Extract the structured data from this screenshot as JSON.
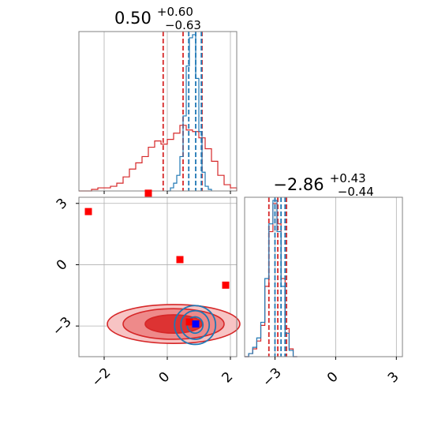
{
  "chart_data": [
    {
      "type": "histogram",
      "panel": "marginal-x",
      "title": {
        "median": "0.50",
        "plus": "+0.60",
        "minus": "−0.63"
      },
      "xlim": [
        -2.8,
        2.2
      ],
      "x_ticks": [
        -2,
        0,
        2
      ],
      "series": [
        {
          "color": "#d62728",
          "bin_edges": [
            -2.8,
            -2.6,
            -2.4,
            -2.2,
            -2.0,
            -1.8,
            -1.6,
            -1.4,
            -1.2,
            -1.0,
            -0.8,
            -0.6,
            -0.4,
            -0.2,
            0.0,
            0.2,
            0.4,
            0.6,
            0.8,
            1.0,
            1.2,
            1.4,
            1.6,
            1.8,
            2.0,
            2.2
          ],
          "counts": [
            0.0,
            0.0,
            0.01,
            0.02,
            0.02,
            0.03,
            0.05,
            0.09,
            0.14,
            0.18,
            0.22,
            0.28,
            0.32,
            0.3,
            0.33,
            0.37,
            0.42,
            0.39,
            0.38,
            0.34,
            0.27,
            0.19,
            0.1,
            0.04,
            0.02
          ],
          "quantile_lines": [
            -0.13,
            0.5,
            1.1
          ]
        },
        {
          "color": "#1f77b4",
          "bin_edges": [
            0.0,
            0.1,
            0.2,
            0.3,
            0.4,
            0.5,
            0.6,
            0.7,
            0.8,
            0.9,
            1.0,
            1.1,
            1.2,
            1.3,
            1.4
          ],
          "counts": [
            0.0,
            0.02,
            0.05,
            0.1,
            0.22,
            0.48,
            0.8,
            0.98,
            1.0,
            0.72,
            0.38,
            0.12,
            0.03,
            0.01
          ],
          "quantile_lines": [
            0.68,
            0.9,
            1.08
          ]
        }
      ]
    },
    {
      "type": "histogram",
      "panel": "marginal-y",
      "title": {
        "median": "−2.86",
        "plus": "+0.43",
        "minus": "−0.44"
      },
      "xlim": [
        -4.5,
        3.3
      ],
      "x_ticks": [
        -3,
        0,
        3
      ],
      "series": [
        {
          "color": "#d62728",
          "bin_edges": [
            -4.5,
            -4.3,
            -4.1,
            -3.9,
            -3.7,
            -3.5,
            -3.3,
            -3.1,
            -2.9,
            -2.7,
            -2.5,
            -2.3,
            -2.1,
            -1.9
          ],
          "counts": [
            0.0,
            0.02,
            0.05,
            0.1,
            0.2,
            0.45,
            0.8,
            0.98,
            0.85,
            0.5,
            0.18,
            0.05,
            0.0
          ],
          "quantile_lines": [
            -3.3,
            -2.86,
            -2.43
          ]
        },
        {
          "color": "#1f77b4",
          "bin_edges": [
            -4.5,
            -4.3,
            -4.1,
            -3.9,
            -3.7,
            -3.5,
            -3.3,
            -3.1,
            -2.9,
            -2.7,
            -2.5,
            -2.3,
            -2.1,
            -1.9
          ],
          "counts": [
            0.0,
            0.02,
            0.06,
            0.12,
            0.22,
            0.5,
            0.85,
            1.0,
            0.8,
            0.45,
            0.15,
            0.04,
            0.0
          ],
          "quantile_lines": [
            -3.0,
            -2.7,
            -2.5
          ]
        }
      ]
    },
    {
      "type": "scatter",
      "panel": "joint",
      "xlim": [
        -2.8,
        2.2
      ],
      "ylim": [
        -4.5,
        3.3
      ],
      "x_ticks": [
        -2,
        0,
        2
      ],
      "y_ticks": [
        -3,
        0,
        3
      ],
      "markers": [
        {
          "x": -2.5,
          "y": 2.6,
          "color": "#ff0000"
        },
        {
          "x": -0.6,
          "y": 3.5,
          "color": "#ff0000"
        },
        {
          "x": 0.4,
          "y": 0.25,
          "color": "#ff0000"
        },
        {
          "x": 1.85,
          "y": -1.0,
          "color": "#ff0000"
        },
        {
          "x": 0.7,
          "y": -2.8,
          "color": "#ff0000"
        },
        {
          "x": 0.9,
          "y": -2.9,
          "color": "#0000ff"
        }
      ],
      "density": [
        {
          "color": "#d62728",
          "cx": 0.2,
          "cy": -2.9,
          "rx": [
            2.1,
            1.6,
            0.9
          ],
          "ry": [
            0.95,
            0.75,
            0.45
          ]
        },
        {
          "color": "#1f77b4",
          "cx": 0.88,
          "cy": -2.95,
          "rx": [
            0.65,
            0.45,
            0.25
          ],
          "ry": [
            0.95,
            0.7,
            0.4
          ]
        }
      ]
    }
  ]
}
